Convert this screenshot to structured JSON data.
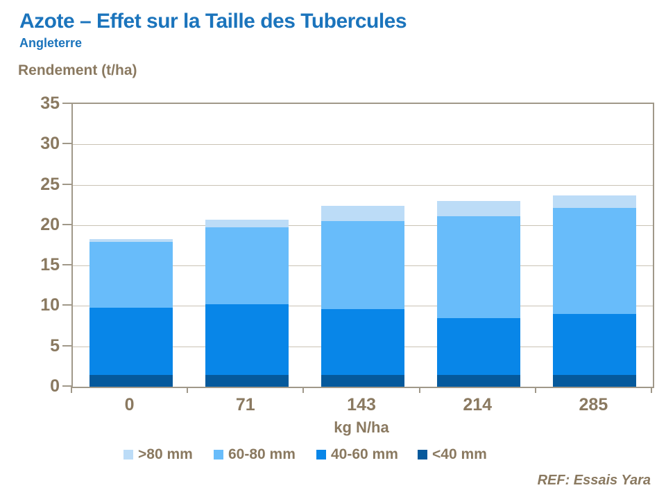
{
  "header": {
    "title": "Azote – Effet sur la Taille des Tubercules",
    "subtitle": "Angleterre"
  },
  "footer": {
    "ref": "REF: Essais Yara"
  },
  "colors": {
    "title_blue": "#1B74BC",
    "text_brown": "#8A7960",
    "frame": "#A09889",
    "gridline": "#C9C2B4"
  },
  "legend": {
    "items": [
      {
        "label": ">80 mm",
        "color": "#BCDCF7"
      },
      {
        "label": "60-80 mm",
        "color": "#68BCFA"
      },
      {
        "label": "40-60 mm",
        "color": "#0886E8"
      },
      {
        "label": "<40 mm",
        "color": "#05599C"
      }
    ]
  },
  "chart_data": {
    "type": "bar",
    "stacked": true,
    "title": "Azote – Effet sur la Taille des Tubercules",
    "subtitle": "Angleterre",
    "categories": [
      "0",
      "71",
      "143",
      "214",
      "285"
    ],
    "series": [
      {
        "name": "<40 mm",
        "color": "#05599C",
        "values": [
          1.5,
          1.5,
          1.5,
          1.5,
          1.5
        ]
      },
      {
        "name": "40-60 mm",
        "color": "#0886E8",
        "values": [
          8.3,
          8.7,
          8.1,
          7.0,
          7.5
        ]
      },
      {
        "name": "60-80 mm",
        "color": "#68BCFA",
        "values": [
          8.1,
          9.5,
          10.9,
          12.6,
          13.1
        ]
      },
      {
        "name": ">80 mm",
        "color": "#BCDCF7",
        "values": [
          0.4,
          1.0,
          1.9,
          1.9,
          1.6
        ]
      }
    ],
    "totals": [
      18.3,
      20.7,
      22.4,
      23.0,
      23.7
    ],
    "xlabel": "kg N/ha",
    "ylabel": "Rendement (t/ha)",
    "ylim": [
      0,
      35
    ],
    "yticks": [
      0,
      5,
      10,
      15,
      20,
      25,
      30,
      35
    ],
    "grid": true,
    "legend_position": "bottom"
  }
}
